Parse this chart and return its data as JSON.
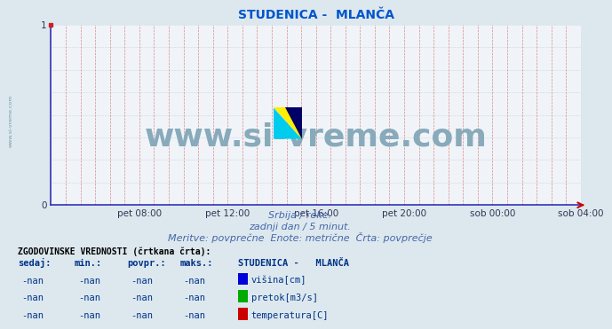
{
  "title": "STUDENICA -  MLANČA",
  "title_color": "#0055cc",
  "title_fontsize": 10,
  "bg_color": "#dde8ee",
  "plot_bg_color": "#f0f4f8",
  "axis_color": "#3333bb",
  "grid_color_v": "#dd8888",
  "grid_color_h": "#aabbcc",
  "watermark_text": "www.si-vreme.com",
  "watermark_color": "#88aabb",
  "watermark_fontsize": 26,
  "side_text": "www.si-vreme.com",
  "side_color": "#7799aa",
  "ylim": [
    0,
    1
  ],
  "yticks": [
    0,
    1
  ],
  "xmin": 0,
  "xmax": 288,
  "xtick_positions": [
    48,
    96,
    144,
    192,
    240,
    288
  ],
  "xtick_labels": [
    "pet 08:00",
    "pet 12:00",
    "pet 16:00",
    "pet 20:00",
    "sob 00:00",
    "sob 04:00"
  ],
  "num_v_gridlines": 36,
  "subtitle1": "Srbija / reke.",
  "subtitle2": "zadnji dan / 5 minut.",
  "subtitle3": "Meritve: povprečne  Enote: metrične  Črta: povprečje",
  "subtitle_color": "#4466aa",
  "subtitle_fontsize": 8,
  "table_header": "ZGODOVINSKE VREDNOSTI (črtkana črta):",
  "table_col_headers": [
    "sedaj:",
    "min.:",
    "povpr.:",
    "maks.:"
  ],
  "table_station": "STUDENICA -   MLANČA",
  "table_rows": [
    {
      "value": "-nan",
      "min": "-nan",
      "avg": "-nan",
      "max": "-nan",
      "color": "#0000dd",
      "label": "višina[cm]"
    },
    {
      "value": "-nan",
      "min": "-nan",
      "avg": "-nan",
      "max": "-nan",
      "color": "#00aa00",
      "label": "pretok[m3/s]"
    },
    {
      "value": "-nan",
      "min": "-nan",
      "avg": "-nan",
      "max": "-nan",
      "color": "#cc0000",
      "label": "temperatura[C]"
    }
  ]
}
